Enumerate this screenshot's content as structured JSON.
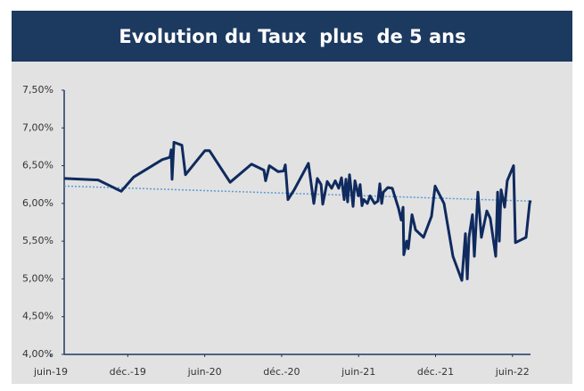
{
  "chart_data": {
    "type": "line",
    "title": "Evolution du Taux  plus  de 5 ans",
    "x": [
      2019.507,
      2019.727,
      2019.878,
      2019.959,
      2020.144,
      2020.191,
      2020.196,
      2020.202,
      2020.208,
      2020.22,
      2020.272,
      2020.295,
      2020.422,
      2020.451,
      2020.585,
      2020.724,
      2020.805,
      2020.816,
      2020.84,
      2020.897,
      2020.932,
      2020.944,
      2020.961,
      2021.002,
      2021.094,
      2021.129,
      2021.152,
      2021.176,
      2021.187,
      2021.216,
      2021.245,
      2021.268,
      2021.291,
      2021.309,
      2021.326,
      2021.338,
      2021.349,
      2021.361,
      2021.384,
      2021.396,
      2021.419,
      2021.43,
      2021.442,
      2021.454,
      2021.477,
      2021.494,
      2021.523,
      2021.546,
      2021.558,
      2021.57,
      2021.581,
      2021.61,
      2021.639,
      2021.68,
      2021.697,
      2021.709,
      2021.714,
      2021.732,
      2021.743,
      2021.767,
      2021.79,
      2021.842,
      2021.894,
      2021.917,
      2021.975,
      2022.033,
      2022.091,
      2022.114,
      2022.126,
      2022.137,
      2022.16,
      2022.172,
      2022.195,
      2022.218,
      2022.253,
      2022.276,
      2022.311,
      2022.323,
      2022.334,
      2022.346,
      2022.369,
      2022.386,
      2022.427,
      2022.439,
      2022.508,
      2022.531,
      2022.537
    ],
    "series": [
      {
        "color": "#0f2a5e",
        "values": [
          6.33,
          6.31,
          6.16,
          6.35,
          6.58,
          6.61,
          6.63,
          6.71,
          6.32,
          6.81,
          6.77,
          6.38,
          6.7,
          6.7,
          6.28,
          6.52,
          6.44,
          6.3,
          6.5,
          6.42,
          6.43,
          6.51,
          6.05,
          6.18,
          6.53,
          6.0,
          6.33,
          6.25,
          5.99,
          6.29,
          6.2,
          6.3,
          6.2,
          6.34,
          6.05,
          6.32,
          6.02,
          6.38,
          5.96,
          6.3,
          6.1,
          6.25,
          5.97,
          6.05,
          6.0,
          6.1,
          6.0,
          6.03,
          6.26,
          6.0,
          6.15,
          6.21,
          6.2,
          5.93,
          5.78,
          5.95,
          5.32,
          5.5,
          5.4,
          5.85,
          5.65,
          5.55,
          5.83,
          6.23,
          6.0,
          5.3,
          4.98,
          5.6,
          5.0,
          5.55,
          5.85,
          5.3,
          6.15,
          5.55,
          5.9,
          5.8,
          5.3,
          6.15,
          5.5,
          6.18,
          5.95,
          6.3,
          6.5,
          5.48,
          5.55,
          6.0,
          6.04
        ]
      }
    ],
    "trend": {
      "x": [
        2019.507,
        2022.537
      ],
      "values": [
        6.23,
        6.03
      ],
      "color": "#5b9bd5"
    },
    "xlim": [
      2019.507,
      2022.537
    ],
    "xticks": [
      {
        "value": 2019.42,
        "label": "juin-19"
      },
      {
        "value": 2019.92,
        "label": "déc.-19"
      },
      {
        "value": 2020.42,
        "label": "juin-20"
      },
      {
        "value": 2020.92,
        "label": "déc.-20"
      },
      {
        "value": 2021.42,
        "label": "juin-21"
      },
      {
        "value": 2021.92,
        "label": "déc.-21"
      },
      {
        "value": 2022.42,
        "label": "juin-22"
      }
    ],
    "ylim": [
      4,
      7.5
    ],
    "yticks": [
      {
        "value": 4,
        "label": "4,00%"
      },
      {
        "value": 4.5,
        "label": "4,50%"
      },
      {
        "value": 5,
        "label": "5,00%"
      },
      {
        "value": 5.5,
        "label": "5,50%"
      },
      {
        "value": 6,
        "label": "6,00%"
      },
      {
        "value": 6.5,
        "label": "6,50%"
      },
      {
        "value": 7,
        "label": "7,00%"
      },
      {
        "value": 7.5,
        "label": "7,50%"
      }
    ]
  }
}
